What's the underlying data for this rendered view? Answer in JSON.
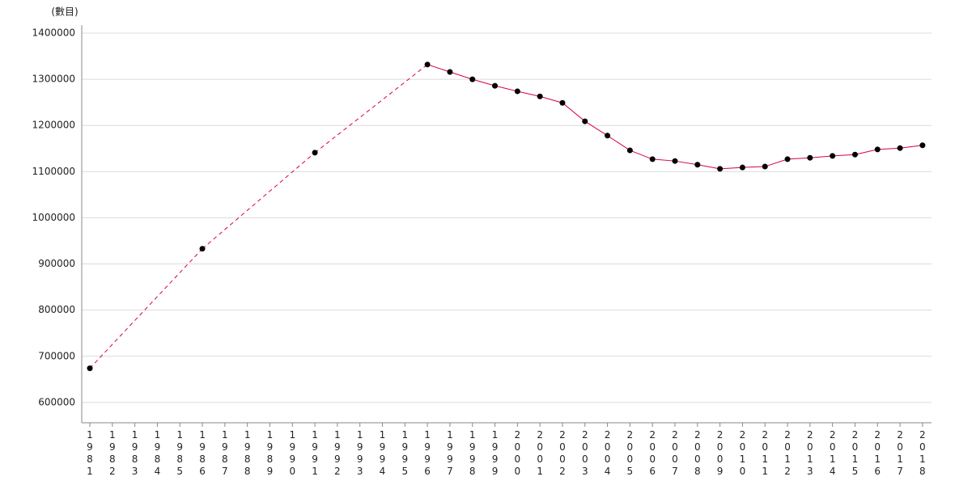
{
  "chart_data": {
    "type": "line",
    "y_label": "(數目)",
    "x": [
      1981,
      1982,
      1983,
      1984,
      1985,
      1986,
      1987,
      1988,
      1989,
      1990,
      1991,
      1992,
      1993,
      1994,
      1995,
      1996,
      1997,
      1998,
      1999,
      2000,
      2001,
      2002,
      2003,
      2004,
      2005,
      2006,
      2007,
      2008,
      2009,
      2010,
      2011,
      2012,
      2013,
      2014,
      2015,
      2016,
      2017,
      2018
    ],
    "series": [
      {
        "color": "#d6004b",
        "marker_color": "#000000",
        "values": [
          674000,
          null,
          null,
          null,
          null,
          933000,
          null,
          null,
          null,
          null,
          1141000,
          null,
          null,
          null,
          null,
          1332000,
          1316000,
          1300000,
          1286000,
          1274000,
          1263000,
          1249000,
          1209000,
          1178000,
          1146000,
          1127000,
          1123000,
          1115000,
          1106000,
          1109000,
          1111000,
          1127000,
          1130000,
          1134000,
          1137000,
          1148000,
          1151000,
          1157000
        ]
      }
    ],
    "xlim": [
      1980.64,
      2018.4
    ],
    "ylim": [
      556000,
      1417500
    ],
    "yticks": [
      600000,
      700000,
      800000,
      900000,
      1000000,
      1100000,
      1200000,
      1300000,
      1400000
    ],
    "grid": true
  }
}
